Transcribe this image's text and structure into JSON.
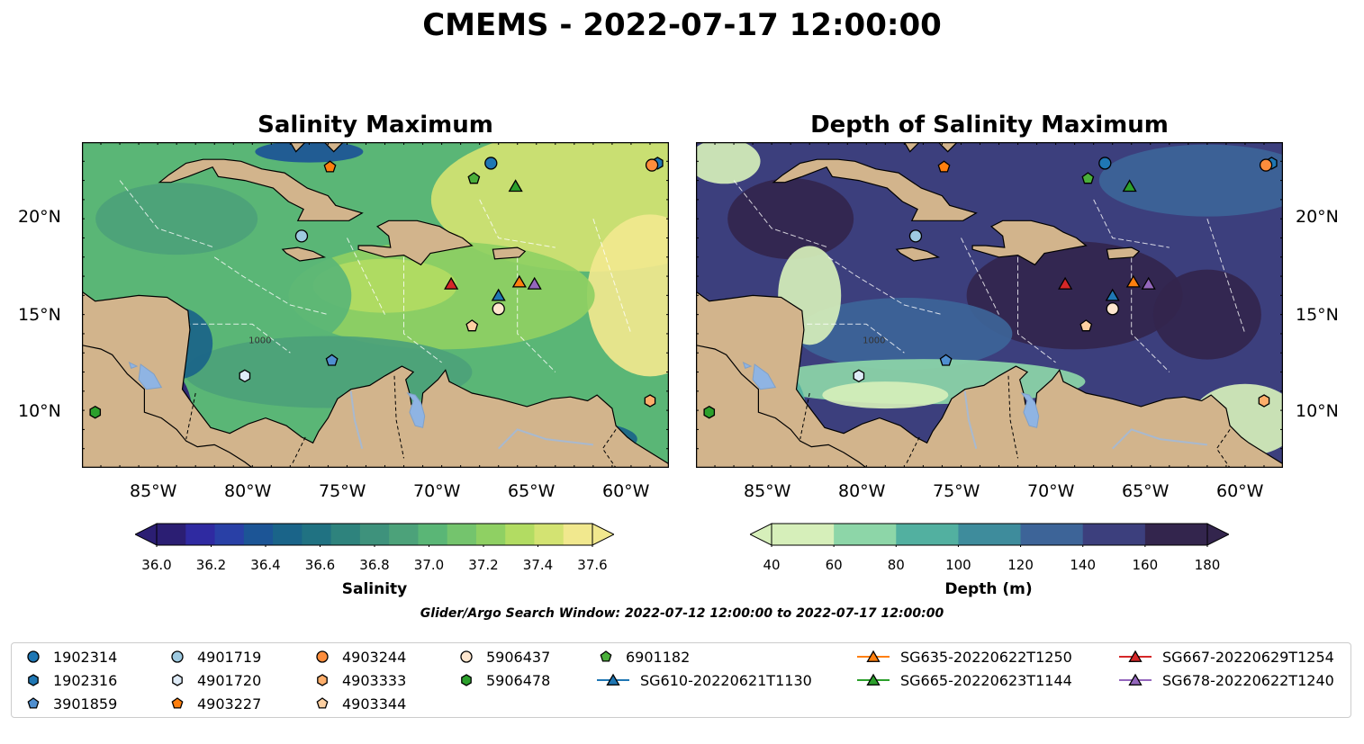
{
  "title": "CMEMS - 2022-07-17 12:00:00",
  "panels": [
    {
      "title": "Salinity Maximum",
      "colorbar": {
        "label": "Salinity",
        "ticks": [
          "36.0",
          "36.2",
          "36.4",
          "36.6",
          "36.8",
          "37.0",
          "37.2",
          "37.4",
          "37.6"
        ],
        "colors": [
          "#2b1e73",
          "#2f2aa1",
          "#2940a6",
          "#1c5596",
          "#1a6489",
          "#207282",
          "#2e837d",
          "#3e927c",
          "#4ca27a",
          "#5ab676",
          "#74c46d",
          "#8fd063",
          "#b2dc62",
          "#d3e372",
          "#f1e88e"
        ],
        "extend": "both"
      }
    },
    {
      "title": "Depth of Salinity Maximum",
      "colorbar": {
        "label": "Depth (m)",
        "ticks": [
          "40",
          "60",
          "80",
          "100",
          "120",
          "140",
          "160",
          "180"
        ],
        "colors": [
          "#d6efba",
          "#8dd6a8",
          "#52b0a0",
          "#3e8c9c",
          "#3d6498",
          "#3c3f7d",
          "#33254d"
        ],
        "extend": "both"
      }
    }
  ],
  "axes": {
    "lon_ticks": [
      "85°W",
      "80°W",
      "75°W",
      "70°W",
      "65°W",
      "60°W"
    ],
    "lat_ticks": [
      "20°N",
      "15°N",
      "10°N"
    ],
    "lon_range": [
      -89,
      -58
    ],
    "lat_range": [
      7,
      24
    ]
  },
  "contour_label": "1000",
  "search_window": "Glider/Argo Search Window: 2022-07-12 12:00:00 to 2022-07-17 12:00:00",
  "legend": [
    {
      "label": "1902314",
      "marker": "circle",
      "color": "#1f77b4"
    },
    {
      "label": "1902316",
      "marker": "hexagon",
      "color": "#1f77b4"
    },
    {
      "label": "3901859",
      "marker": "pentagon",
      "color": "#4f8fd0"
    },
    {
      "label": "4901719",
      "marker": "circle",
      "color": "#9ecae1"
    },
    {
      "label": "4901720",
      "marker": "hexagon",
      "color": "#deebf7"
    },
    {
      "label": "4903227",
      "marker": "pentagon",
      "color": "#ff7f0e"
    },
    {
      "label": "4903244",
      "marker": "circle",
      "color": "#fd8d3c"
    },
    {
      "label": "4903333",
      "marker": "hexagon",
      "color": "#fdae6b"
    },
    {
      "label": "4903344",
      "marker": "pentagon",
      "color": "#fdd0a2"
    },
    {
      "label": "5906437",
      "marker": "circle",
      "color": "#fee6ce"
    },
    {
      "label": "5906478",
      "marker": "hexagon",
      "color": "#2ca02c"
    },
    {
      "label": "6901182",
      "marker": "pentagon",
      "color": "#4aaf3a"
    },
    {
      "label": "SG610-20220621T1130",
      "marker": "triangle-line",
      "color": "#1f77b4"
    },
    {
      "label": "SG635-20220622T1250",
      "marker": "triangle-line",
      "color": "#ff7f0e"
    },
    {
      "label": "SG665-20220623T1144",
      "marker": "triangle-line",
      "color": "#2ca02c"
    },
    {
      "label": "SG667-20220629T1254",
      "marker": "triangle-line",
      "color": "#d62728"
    },
    {
      "label": "SG678-20220622T1240",
      "marker": "triangle-line",
      "color": "#9467bd"
    }
  ],
  "observations": [
    {
      "id": "1902314",
      "lon": -67.4,
      "lat": 22.9
    },
    {
      "id": "1902316",
      "lon": -58.6,
      "lat": 22.9
    },
    {
      "id": "3901859",
      "lon": -75.8,
      "lat": 12.6
    },
    {
      "id": "4901719",
      "lon": -77.4,
      "lat": 19.1
    },
    {
      "id": "4901720",
      "lon": -80.4,
      "lat": 11.8
    },
    {
      "id": "4903227",
      "lon": -75.9,
      "lat": 22.7
    },
    {
      "id": "4903244",
      "lon": -58.9,
      "lat": 22.8
    },
    {
      "id": "4903333",
      "lon": -59.0,
      "lat": 10.5
    },
    {
      "id": "4903344",
      "lon": -68.4,
      "lat": 14.4
    },
    {
      "id": "5906437",
      "lon": -67.0,
      "lat": 15.3
    },
    {
      "id": "5906478",
      "lon": -88.3,
      "lat": 9.9
    },
    {
      "id": "6901182",
      "lon": -68.3,
      "lat": 22.1
    },
    {
      "id": "SG610-20220621T1130",
      "lon": -67.0,
      "lat": 16.0
    },
    {
      "id": "SG635-20220622T1250",
      "lon": -65.9,
      "lat": 16.7
    },
    {
      "id": "SG665-20220623T1144",
      "lon": -66.1,
      "lat": 21.7
    },
    {
      "id": "SG667-20220629T1254",
      "lon": -69.5,
      "lat": 16.6
    },
    {
      "id": "SG678-20220622T1240",
      "lon": -65.1,
      "lat": 16.6
    }
  ]
}
